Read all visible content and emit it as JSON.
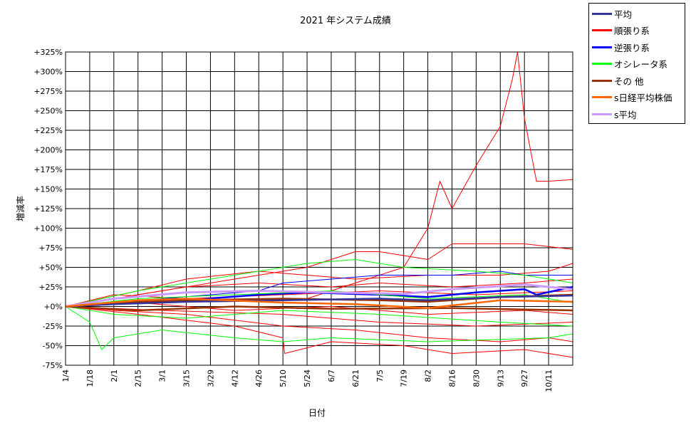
{
  "chart_data": {
    "type": "line",
    "title": "2021 年システム成績",
    "xlabel": "日付",
    "ylabel": "増減率",
    "x_ticks": [
      "1/4",
      "1/18",
      "2/1",
      "2/15",
      "3/1",
      "3/15",
      "3/29",
      "4/12",
      "4/26",
      "5/10",
      "5/24",
      "6/7",
      "6/21",
      "7/5",
      "7/19",
      "8/2",
      "8/16",
      "8/30",
      "9/13",
      "9/27",
      "10/11"
    ],
    "x_range": [
      "1/4",
      "10/25"
    ],
    "y_ticks": [
      "+325%",
      "+300%",
      "+275%",
      "+250%",
      "+225%",
      "+200%",
      "+175%",
      "+150%",
      "+125%",
      "+100%",
      "+75%",
      "+50%",
      "+25%",
      "+0%",
      "-25%",
      "-50%",
      "-75%"
    ],
    "ylim": [
      -75,
      325
    ],
    "y_unit": "%",
    "grid": true,
    "legend_position": "top-right, outside plot",
    "legend": [
      {
        "name": "平均",
        "color": "#333399"
      },
      {
        "name": "順張り系",
        "color": "#ff0000"
      },
      {
        "name": "逆張り系",
        "color": "#0000ff"
      },
      {
        "name": "オシレータ系",
        "color": "#00ff00"
      },
      {
        "name": "その 他",
        "color": "#993300"
      },
      {
        "name": "s日経平均株価",
        "color": "#ff6600"
      },
      {
        "name": "s平均",
        "color": "#cc99ff"
      }
    ],
    "series": [
      {
        "group": "順張り系",
        "color": "#ff0000",
        "points": [
          [
            "1/4",
            0
          ],
          [
            "3/1",
            5
          ],
          [
            "5/24",
            10
          ],
          [
            "7/19",
            50
          ],
          [
            "8/2",
            100
          ],
          [
            "8/9",
            160
          ],
          [
            "8/16",
            125
          ],
          [
            "8/30",
            180
          ],
          [
            "9/13",
            230
          ],
          [
            "9/20",
            290
          ],
          [
            "9/23",
            325
          ],
          [
            "9/27",
            240
          ],
          [
            "10/4",
            160
          ],
          [
            "10/11",
            160
          ],
          [
            "10/25",
            162
          ]
        ]
      },
      {
        "group": "順張り系",
        "color": "#ff0000",
        "points": [
          [
            "1/4",
            0
          ],
          [
            "2/15",
            15
          ],
          [
            "4/12",
            35
          ],
          [
            "5/24",
            50
          ],
          [
            "6/21",
            70
          ],
          [
            "7/5",
            70
          ],
          [
            "8/2",
            60
          ],
          [
            "8/16",
            80
          ],
          [
            "9/27",
            80
          ],
          [
            "10/25",
            73
          ]
        ]
      },
      {
        "group": "順張り系",
        "color": "#ff0000",
        "points": [
          [
            "1/4",
            0
          ],
          [
            "2/15",
            20
          ],
          [
            "3/15",
            35
          ],
          [
            "4/26",
            45
          ],
          [
            "5/24",
            40
          ],
          [
            "6/21",
            35
          ],
          [
            "8/2",
            40
          ],
          [
            "9/13",
            40
          ],
          [
            "10/11",
            45
          ],
          [
            "10/25",
            55
          ]
        ]
      },
      {
        "group": "順張り系",
        "color": "#ff0000",
        "points": [
          [
            "1/4",
            0
          ],
          [
            "2/1",
            10
          ],
          [
            "3/15",
            25
          ],
          [
            "4/26",
            30
          ],
          [
            "6/7",
            25
          ],
          [
            "7/5",
            30
          ],
          [
            "8/16",
            25
          ],
          [
            "9/27",
            30
          ],
          [
            "10/25",
            35
          ]
        ]
      },
      {
        "group": "順張り系",
        "color": "#ff0000",
        "points": [
          [
            "1/4",
            0
          ],
          [
            "2/1",
            -5
          ],
          [
            "3/15",
            -10
          ],
          [
            "5/10",
            -25
          ],
          [
            "6/21",
            -30
          ],
          [
            "8/2",
            -40
          ],
          [
            "9/13",
            -45
          ],
          [
            "10/11",
            -40
          ],
          [
            "10/25",
            -45
          ]
        ]
      },
      {
        "group": "順張り系",
        "color": "#ff0000",
        "points": [
          [
            "1/4",
            0
          ],
          [
            "2/15",
            -10
          ],
          [
            "4/12",
            -25
          ],
          [
            "5/10",
            -40
          ],
          [
            "5/11",
            -60
          ],
          [
            "6/7",
            -45
          ],
          [
            "7/19",
            -50
          ],
          [
            "8/16",
            -60
          ],
          [
            "9/27",
            -55
          ],
          [
            "10/25",
            -65
          ]
        ]
      },
      {
        "group": "順張り系",
        "color": "#ff0000",
        "points": [
          [
            "1/4",
            0
          ],
          [
            "3/1",
            -5
          ],
          [
            "5/10",
            -10
          ],
          [
            "7/5",
            -20
          ],
          [
            "8/30",
            -25
          ],
          [
            "10/25",
            -20
          ]
        ]
      },
      {
        "group": "順張り系",
        "color": "#ff0000",
        "points": [
          [
            "1/4",
            0
          ],
          [
            "2/1",
            15
          ],
          [
            "3/15",
            10
          ],
          [
            "5/10",
            15
          ],
          [
            "7/5",
            20
          ],
          [
            "8/30",
            15
          ],
          [
            "10/25",
            20
          ]
        ]
      },
      {
        "group": "順張り系",
        "color": "#ff0000",
        "points": [
          [
            "1/4",
            0
          ],
          [
            "2/15",
            5
          ],
          [
            "4/12",
            -5
          ],
          [
            "6/7",
            0
          ],
          [
            "8/2",
            -10
          ],
          [
            "9/27",
            -5
          ],
          [
            "10/25",
            -10
          ]
        ]
      },
      {
        "group": "逆張り系",
        "color": "#0000ff",
        "points": [
          [
            "1/4",
            0
          ],
          [
            "2/1",
            5
          ],
          [
            "3/15",
            8
          ],
          [
            "4/26",
            15
          ],
          [
            "5/24",
            18
          ],
          [
            "7/5",
            15
          ],
          [
            "8/2",
            12
          ],
          [
            "8/30",
            18
          ],
          [
            "9/27",
            22
          ],
          [
            "10/4",
            15
          ],
          [
            "10/25",
            25
          ]
        ]
      },
      {
        "group": "逆張り系",
        "color": "#0000ff",
        "points": [
          [
            "1/4",
            0
          ],
          [
            "3/1",
            10
          ],
          [
            "4/26",
            20
          ],
          [
            "5/10",
            30
          ],
          [
            "6/7",
            35
          ],
          [
            "7/5",
            40
          ],
          [
            "8/16",
            40
          ],
          [
            "9/13",
            45
          ],
          [
            "9/27",
            40
          ],
          [
            "10/25",
            40
          ]
        ]
      },
      {
        "group": "オシレータ系",
        "color": "#00ff00",
        "points": [
          [
            "1/4",
            0
          ],
          [
            "1/18",
            -20
          ],
          [
            "1/25",
            -55
          ],
          [
            "2/1",
            -40
          ],
          [
            "3/1",
            -30
          ],
          [
            "4/12",
            -40
          ],
          [
            "5/10",
            -45
          ],
          [
            "6/7",
            -40
          ],
          [
            "8/2",
            -45
          ],
          [
            "10/11",
            -40
          ],
          [
            "10/25",
            -35
          ]
        ]
      },
      {
        "group": "オシレータ系",
        "color": "#00ff00",
        "points": [
          [
            "1/4",
            0
          ],
          [
            "2/15",
            20
          ],
          [
            "4/12",
            40
          ],
          [
            "5/24",
            55
          ],
          [
            "6/21",
            60
          ],
          [
            "7/19",
            50
          ],
          [
            "8/30",
            45
          ],
          [
            "9/27",
            40
          ],
          [
            "10/25",
            30
          ]
        ]
      },
      {
        "group": "オシレータ系",
        "color": "#00ff00",
        "points": [
          [
            "1/4",
            0
          ],
          [
            "2/1",
            -10
          ],
          [
            "3/15",
            -15
          ],
          [
            "5/10",
            -5
          ],
          [
            "7/5",
            -10
          ],
          [
            "9/13",
            -20
          ],
          [
            "10/25",
            -25
          ]
        ]
      },
      {
        "group": "オシレータ系",
        "color": "#00ff00",
        "points": [
          [
            "1/4",
            0
          ],
          [
            "2/15",
            10
          ],
          [
            "4/12",
            15
          ],
          [
            "6/7",
            20
          ],
          [
            "8/2",
            10
          ],
          [
            "9/27",
            15
          ],
          [
            "10/25",
            5
          ]
        ]
      },
      {
        "group": "その 他",
        "color": "#993300",
        "points": [
          [
            "1/4",
            0
          ],
          [
            "2/1",
            5
          ],
          [
            "3/15",
            8
          ],
          [
            "5/10",
            10
          ],
          [
            "7/5",
            8
          ],
          [
            "8/2",
            6
          ],
          [
            "9/13",
            12
          ],
          [
            "10/25",
            15
          ]
        ]
      },
      {
        "group": "その 他",
        "color": "#993300",
        "points": [
          [
            "1/4",
            0
          ],
          [
            "2/15",
            -5
          ],
          [
            "4/12",
            0
          ],
          [
            "6/7",
            -3
          ],
          [
            "8/16",
            -2
          ],
          [
            "10/25",
            -5
          ]
        ]
      },
      {
        "group": "平均",
        "color": "#333399",
        "points": [
          [
            "1/4",
            0
          ],
          [
            "2/1",
            3
          ],
          [
            "3/15",
            6
          ],
          [
            "5/10",
            8
          ],
          [
            "7/5",
            10
          ],
          [
            "8/2",
            8
          ],
          [
            "9/13",
            12
          ],
          [
            "10/25",
            14
          ]
        ]
      },
      {
        "group": "s平均",
        "color": "#cc99ff",
        "points": [
          [
            "1/4",
            0
          ],
          [
            "2/1",
            10
          ],
          [
            "3/15",
            18
          ],
          [
            "4/26",
            20
          ],
          [
            "6/7",
            18
          ],
          [
            "7/19",
            16
          ],
          [
            "8/16",
            22
          ],
          [
            "9/27",
            28
          ],
          [
            "10/25",
            22
          ]
        ]
      },
      {
        "group": "s日経平均株価",
        "color": "#ff6600",
        "points": [
          [
            "1/4",
            0
          ],
          [
            "2/15",
            8
          ],
          [
            "3/15",
            10
          ],
          [
            "5/10",
            5
          ],
          [
            "6/21",
            3
          ],
          [
            "8/2",
            -2
          ],
          [
            "9/13",
            8
          ],
          [
            "10/25",
            6
          ]
        ]
      }
    ]
  }
}
